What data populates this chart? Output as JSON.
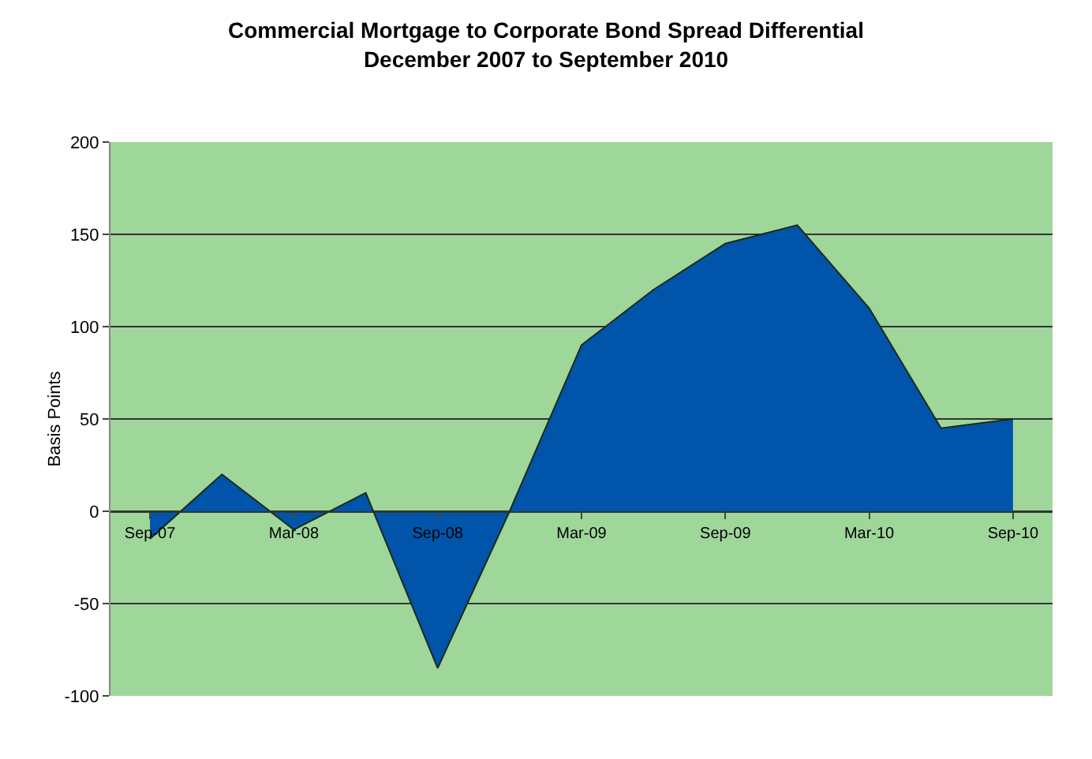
{
  "chart_data": {
    "type": "area",
    "title": "Commercial Mortgage to Corporate Bond Spread Differential",
    "subtitle": "December 2007 to September 2010",
    "ylabel": "Basis Points",
    "categories": [
      "Sep-07",
      null,
      "Mar-08",
      null,
      "Sep-08",
      null,
      "Mar-09",
      null,
      "Sep-09",
      null,
      "Mar-10",
      null,
      "Sep-10"
    ],
    "series": [
      {
        "color": "#0055aa",
        "values": [
          -15,
          20,
          -10,
          10,
          -85,
          0,
          90,
          120,
          145,
          155,
          110,
          45,
          50
        ]
      }
    ],
    "ylim": [
      -100,
      200
    ],
    "yticks": [
      -100,
      -50,
      0,
      50,
      100,
      150,
      200
    ],
    "grid": "y"
  }
}
